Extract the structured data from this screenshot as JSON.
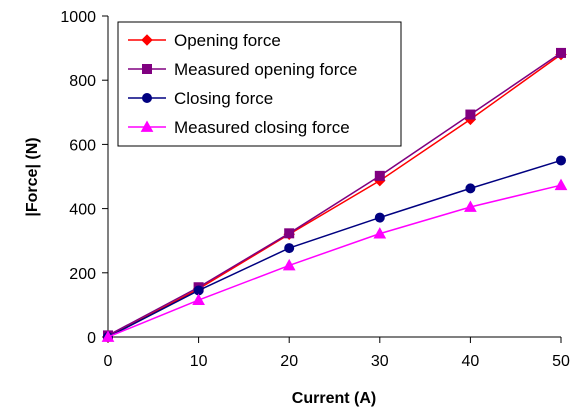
{
  "chart_data": {
    "type": "line",
    "xlabel": "Current (A)",
    "ylabel": "|Force| (N)",
    "xlim": [
      0,
      50
    ],
    "ylim": [
      0,
      1000
    ],
    "xticks": [
      0,
      10,
      20,
      30,
      40,
      50
    ],
    "yticks": [
      0,
      200,
      400,
      600,
      800,
      1000
    ],
    "grid": false,
    "legend_position": "top-left",
    "series": [
      {
        "name": "Opening force",
        "color": "#ff0000",
        "marker": "diamond",
        "x": [
          0,
          10,
          20,
          30,
          40,
          50
        ],
        "y": [
          0,
          150,
          320,
          487,
          678,
          880
        ]
      },
      {
        "name": "Measured opening force",
        "color": "#800080",
        "marker": "square",
        "x": [
          0,
          10,
          20,
          30,
          40,
          50
        ],
        "y": [
          5,
          155,
          323,
          502,
          693,
          885
        ]
      },
      {
        "name": "Closing force",
        "color": "#000080",
        "marker": "circle",
        "x": [
          0,
          10,
          20,
          30,
          40,
          50
        ],
        "y": [
          0,
          145,
          277,
          372,
          463,
          550
        ]
      },
      {
        "name": "Measured closing force",
        "color": "#ff00ff",
        "marker": "triangle",
        "x": [
          0,
          10,
          20,
          30,
          40,
          50
        ],
        "y": [
          0,
          115,
          223,
          322,
          405,
          473
        ]
      }
    ]
  }
}
